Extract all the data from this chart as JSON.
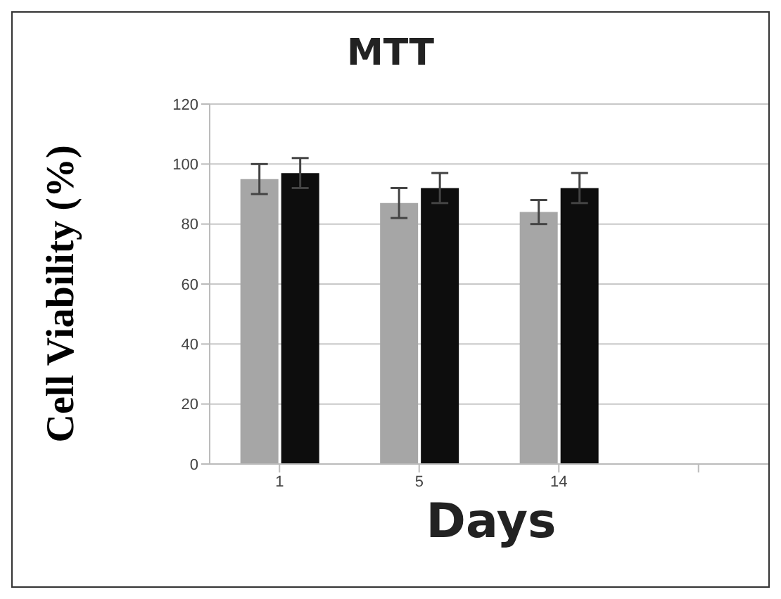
{
  "chart_data": {
    "type": "bar",
    "title": "MTT",
    "xlabel": "Days",
    "ylabel": "Cell Viability (%)",
    "categories": [
      "1",
      "5",
      "14",
      null
    ],
    "series": [
      {
        "color": "#a6a6a6",
        "values": [
          95,
          87,
          84,
          null
        ],
        "errors": [
          5,
          5,
          4,
          null
        ]
      },
      {
        "color": "#0d0d0d",
        "values": [
          97,
          92,
          92,
          null
        ],
        "errors": [
          5,
          5,
          5,
          null
        ]
      }
    ],
    "ylim": [
      0,
      120
    ],
    "yticks": [
      0,
      20,
      40,
      60,
      80,
      100,
      120
    ],
    "grid": "y",
    "legend": false
  }
}
